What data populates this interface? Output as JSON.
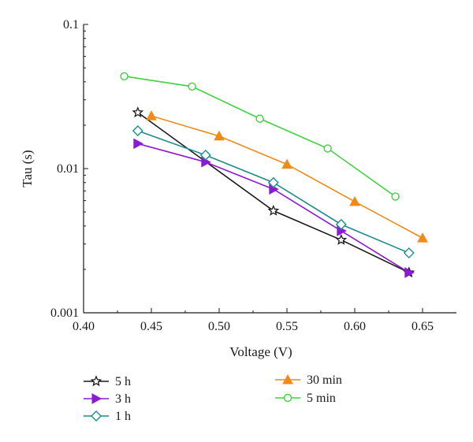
{
  "chart_data": {
    "type": "line",
    "xlabel": "Voltage (V)",
    "ylabel": "Tau (s)",
    "xlim": [
      0.4,
      0.675
    ],
    "ylim": [
      0.001,
      0.1
    ],
    "yscale": "log",
    "x_ticks": [
      0.4,
      0.45,
      0.5,
      0.55,
      0.6,
      0.65
    ],
    "x_tick_labels": [
      "0.40",
      "0.45",
      "0.50",
      "0.55",
      "0.60",
      "0.65"
    ],
    "y_ticks": [
      0.001,
      0.01,
      0.1
    ],
    "y_tick_labels": [
      "0.001",
      "0.01",
      "0.1"
    ],
    "grid": false,
    "legend_placement": "bottom",
    "series": [
      {
        "name": "5 h",
        "color": "#1a1a1a",
        "marker": "star",
        "x": [
          0.44,
          0.54,
          0.59,
          0.64
        ],
        "y": [
          0.0245,
          0.0051,
          0.0032,
          0.0019
        ]
      },
      {
        "name": "3 h",
        "color": "#8b1ad6",
        "marker": "triangle-right",
        "x": [
          0.44,
          0.49,
          0.54,
          0.59,
          0.64
        ],
        "y": [
          0.0149,
          0.0111,
          0.0072,
          0.0037,
          0.0019
        ]
      },
      {
        "name": "1 h",
        "color": "#1a8c8c",
        "marker": "diamond",
        "x": [
          0.44,
          0.49,
          0.54,
          0.59,
          0.64
        ],
        "y": [
          0.0183,
          0.0124,
          0.008,
          0.0041,
          0.0026
        ]
      },
      {
        "name": "30 min",
        "color": "#f08a1a",
        "marker": "triangle-up",
        "x": [
          0.45,
          0.5,
          0.55,
          0.6,
          0.65
        ],
        "y": [
          0.0232,
          0.0168,
          0.0107,
          0.0059,
          0.0033
        ]
      },
      {
        "name": "5 min",
        "color": "#3fd13f",
        "marker": "circle",
        "x": [
          0.43,
          0.48,
          0.53,
          0.58,
          0.63
        ],
        "y": [
          0.0437,
          0.0371,
          0.0222,
          0.0138,
          0.0064
        ]
      }
    ]
  }
}
